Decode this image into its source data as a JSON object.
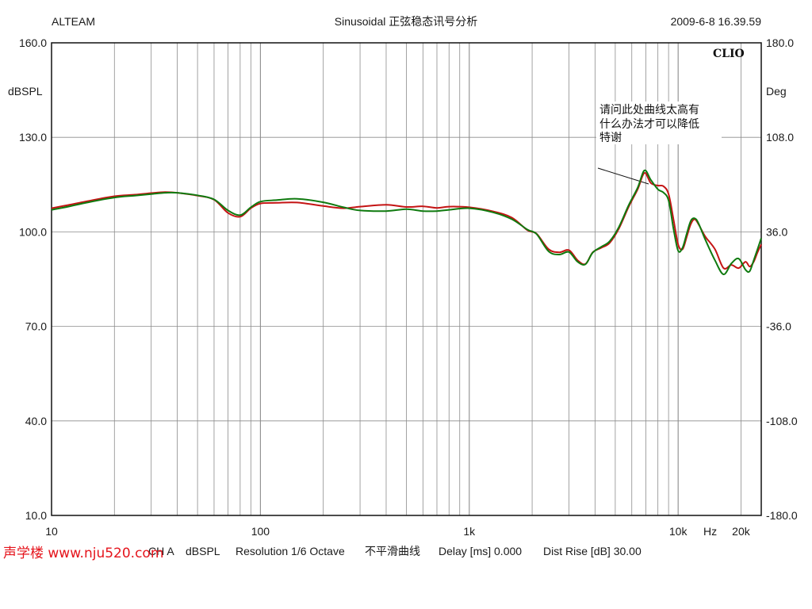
{
  "header": {
    "left": "ALTEAM",
    "center": "Sinusoidal 正弦稳态讯号分析",
    "right": "2009-6-8 16.39.59"
  },
  "brand": "CLIO",
  "annotation": [
    "请问此处曲线太高有",
    "什么办法才可以降低",
    "特谢"
  ],
  "footer": {
    "channel": "CH A",
    "unit": "dBSPL",
    "resolution": "Resolution 1/6 Octave",
    "smoothing": "不平滑曲线",
    "delay": "Delay [ms] 0.000",
    "dist": "Dist Rise [dB] 30.00"
  },
  "watermark": "声学楼 www.nju520.com",
  "colors": {
    "grid": "#8c8c8c",
    "series_red": "#c41414",
    "series_green": "#0f7a0f",
    "watermark": "#e5141c",
    "background": "#ffffff"
  },
  "chart_data": {
    "type": "line",
    "x_scale": "log",
    "xlim": [
      10,
      25000
    ],
    "ylim": [
      10,
      160
    ],
    "y_ticks": [
      "160.0",
      "130.0",
      "100.0",
      "70.0",
      "40.0",
      "10.0"
    ],
    "ylabel": "dBSPL",
    "y2lim": [
      -180,
      180
    ],
    "y2_ticks": [
      "180.0",
      "108.0",
      "36.0",
      "-36.0",
      "-108.0",
      "-180.0"
    ],
    "y2label": "Deg",
    "x_ticks": [
      "10",
      "100",
      "1k",
      "10k",
      "20k"
    ],
    "xlabel": "Hz",
    "grid": true,
    "x": [
      10,
      12,
      15,
      20,
      25,
      30,
      35,
      40,
      50,
      60,
      70,
      80,
      90,
      100,
      120,
      150,
      200,
      250,
      300,
      400,
      500,
      600,
      700,
      800,
      1000,
      1300,
      1600,
      1900,
      2100,
      2400,
      2700,
      3000,
      3300,
      3600,
      3900,
      4300,
      4700,
      5200,
      5800,
      6400,
      6900,
      7400,
      8000,
      8500,
      9000,
      9500,
      10000,
      10500,
      11000,
      11500,
      12000,
      12500,
      13500,
      15000,
      16500,
      18000,
      19500,
      21000,
      22000,
      23000,
      24000,
      25000
    ],
    "series": [
      {
        "values": [
          107.5,
          108.5,
          109.8,
          111.3,
          111.8,
          112.3,
          112.6,
          112.4,
          111.5,
          110.2,
          106.0,
          104.8,
          107.5,
          109.0,
          109.2,
          109.3,
          108.2,
          107.5,
          108.0,
          108.6,
          107.9,
          108.1,
          107.6,
          108.0,
          107.8,
          106.5,
          104.5,
          100.5,
          99.4,
          94.5,
          93.5,
          94.2,
          91.0,
          89.8,
          93.5,
          95.0,
          96.5,
          101.0,
          108.0,
          113.5,
          118.7,
          115.5,
          114.7,
          114.5,
          112.0,
          104.0,
          96.0,
          94.5,
          98.5,
          102.5,
          104.0,
          102.5,
          98.5,
          94.5,
          88.5,
          89.5,
          88.5,
          90.5,
          89.0,
          90.5,
          93.5,
          96.0
        ]
      },
      {
        "values": [
          107.0,
          108.0,
          109.4,
          110.9,
          111.5,
          112.0,
          112.4,
          112.4,
          111.6,
          110.3,
          106.8,
          105.3,
          107.8,
          109.6,
          110.1,
          110.5,
          109.4,
          107.8,
          106.8,
          106.6,
          107.2,
          106.6,
          106.6,
          107.0,
          107.5,
          106.2,
          104.0,
          100.7,
          99.3,
          93.8,
          92.8,
          93.6,
          90.5,
          89.7,
          93.4,
          95.3,
          97.0,
          101.5,
          108.5,
          114.0,
          119.5,
          116.5,
          113.5,
          112.5,
          110.0,
          101.0,
          94.0,
          95.0,
          99.5,
          103.5,
          104.3,
          102.8,
          97.5,
          91.0,
          86.5,
          90.0,
          91.5,
          88.0,
          87.5,
          91.0,
          94.5,
          98.0
        ]
      }
    ]
  }
}
